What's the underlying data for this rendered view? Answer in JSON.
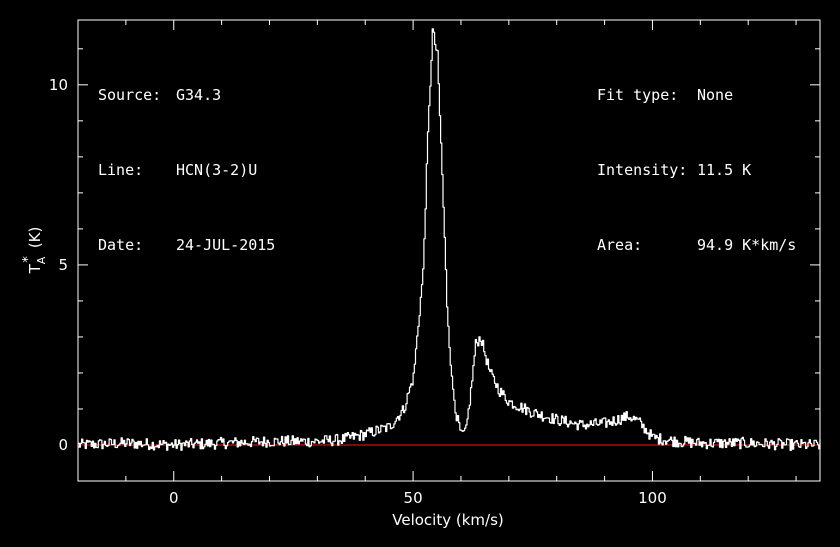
{
  "header_left": [
    {
      "key": "Source:",
      "value": "G34.3"
    },
    {
      "key": "Line:",
      "value": "HCN(3-2)U"
    },
    {
      "key": "Date:",
      "value": "24-JUL-2015"
    }
  ],
  "header_right": [
    {
      "key": "Fit type:",
      "value": "None"
    },
    {
      "key": "Intensity:",
      "value": "11.5 K"
    },
    {
      "key": "Area:",
      "value": "94.9 K*km/s"
    }
  ],
  "colors": {
    "background": "#000000",
    "axes": "#ffffff",
    "spectrum": "#ffffff",
    "baseline": "#cc1111"
  },
  "chart_data": {
    "type": "line",
    "title": "",
    "xlabel": "Velocity (km/s)",
    "ylabel_main": "T",
    "ylabel_superscript": "*",
    "ylabel_subscript": "A",
    "ylabel_unit": "(K)",
    "xlim": [
      -20,
      135
    ],
    "ylim": [
      -1.0,
      11.8
    ],
    "xticks": [
      0,
      50,
      100
    ],
    "xtick_labels": [
      "0",
      "50",
      "100"
    ],
    "yticks": [
      0,
      5,
      10
    ],
    "ytick_labels": [
      "0",
      "5",
      "10"
    ],
    "grid": false,
    "legend": "none",
    "baseline": {
      "name": "",
      "y": 0
    },
    "series": [
      {
        "name": "",
        "x": [
          -20,
          -10,
          0,
          10,
          20,
          30,
          35,
          40,
          45,
          48,
          50,
          52,
          53,
          54,
          55,
          56,
          57,
          58,
          59,
          60,
          61,
          62,
          63,
          64,
          65,
          66,
          68,
          70,
          75,
          80,
          85,
          90,
          95,
          97,
          100,
          105,
          110,
          120,
          130,
          135
        ],
        "y": [
          0.0,
          0.05,
          0.0,
          0.05,
          0.1,
          0.1,
          0.15,
          0.3,
          0.5,
          1.0,
          1.9,
          4.8,
          8.6,
          11.5,
          10.8,
          7.5,
          3.9,
          1.8,
          0.8,
          0.25,
          0.4,
          1.5,
          2.8,
          3.0,
          2.5,
          2.0,
          1.5,
          1.2,
          0.9,
          0.7,
          0.55,
          0.6,
          0.8,
          0.65,
          0.2,
          0.1,
          0.05,
          0.05,
          0.0,
          0.0
        ]
      }
    ]
  }
}
